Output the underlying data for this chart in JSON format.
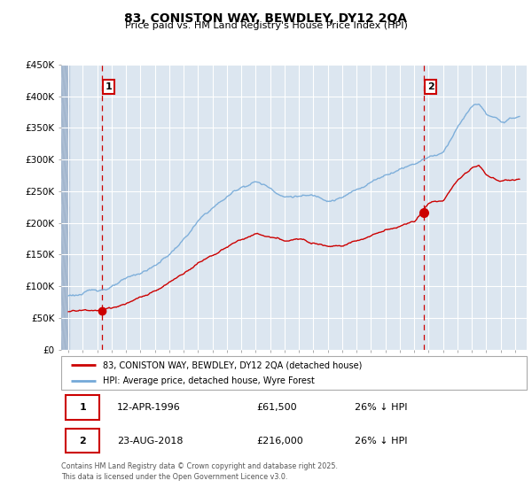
{
  "title": "83, CONISTON WAY, BEWDLEY, DY12 2QA",
  "subtitle": "Price paid vs. HM Land Registry's House Price Index (HPI)",
  "legend_label_red": "83, CONISTON WAY, BEWDLEY, DY12 2QA (detached house)",
  "legend_label_blue": "HPI: Average price, detached house, Wyre Forest",
  "annotation1_label": "1",
  "annotation1_date": "12-APR-1996",
  "annotation1_price": "£61,500",
  "annotation1_hpi": "26% ↓ HPI",
  "annotation1_year": 1996.3,
  "annotation1_value_red": 61500,
  "annotation2_label": "2",
  "annotation2_date": "23-AUG-2018",
  "annotation2_price": "£216,000",
  "annotation2_hpi": "26% ↓ HPI",
  "annotation2_year": 2018.64,
  "annotation2_value_red": 216000,
  "footer": "Contains HM Land Registry data © Crown copyright and database right 2025.\nThis data is licensed under the Open Government Licence v3.0.",
  "ylim": [
    0,
    450000
  ],
  "yticks": [
    0,
    50000,
    100000,
    150000,
    200000,
    250000,
    300000,
    350000,
    400000,
    450000
  ],
  "color_red": "#cc0000",
  "color_blue": "#74a9d8",
  "background_color": "#ffffff",
  "plot_bg_color": "#dce6f0",
  "grid_color": "#ffffff",
  "hatch_color": "#b8c8dc"
}
